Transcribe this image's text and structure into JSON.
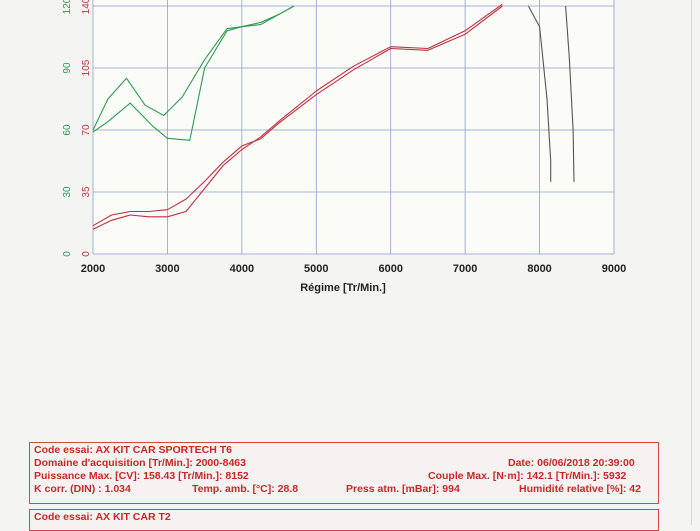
{
  "chart_data": {
    "type": "line",
    "xlabel": "Régime [Tr/Min.]",
    "x_ticks": [
      2000,
      3000,
      4000,
      5000,
      6000,
      7000,
      8000,
      9000
    ],
    "xlim": [
      2000,
      9000
    ],
    "y_left_power_ticks": [
      0,
      30,
      60,
      90,
      120
    ],
    "y_left_power_color": "#2e9a55",
    "y_right_torque_ticks": [
      0,
      35,
      70,
      105,
      140
    ],
    "y_right_torque_color": "#c23040",
    "ylim_power": [
      0,
      120
    ],
    "ylim_torque": [
      0,
      140
    ],
    "grid": true,
    "series": [
      {
        "color": "#c23040",
        "axis": "torque",
        "x": [
          2000,
          2250,
          2500,
          2750,
          3000,
          3250,
          3500,
          3750,
          4000,
          4250,
          4500,
          5000,
          5500,
          6000,
          6500,
          7000,
          7500
        ],
        "y": [
          16,
          22,
          24,
          24,
          25,
          31,
          41,
          52,
          61,
          65,
          74,
          90,
          104,
          116,
          115,
          124,
          140
        ]
      },
      {
        "color": "#c23040",
        "axis": "torque",
        "x": [
          2000,
          2250,
          2500,
          2750,
          3000,
          3250,
          3500,
          3750,
          4000,
          4250,
          4500,
          5000,
          5500,
          6000,
          6500,
          7000,
          7500
        ],
        "y": [
          14,
          19,
          22,
          21,
          21,
          24,
          37,
          50,
          59,
          66,
          75,
          92,
          106,
          117,
          116,
          126,
          141
        ]
      },
      {
        "color": "#2e9a55",
        "axis": "power",
        "x": [
          2000,
          2200,
          2450,
          2700,
          2950,
          3200,
          3500,
          3800,
          4000,
          4250,
          4500,
          4700
        ],
        "y": [
          60,
          75,
          85,
          72,
          67,
          76,
          94,
          109,
          110,
          112,
          116,
          120
        ]
      },
      {
        "color": "#2e9a55",
        "axis": "power",
        "x": [
          2000,
          2200,
          2500,
          2800,
          3000,
          3300,
          3500,
          3800,
          4000,
          4250,
          4500,
          4700
        ],
        "y": [
          59,
          64,
          73,
          62,
          56,
          55,
          90,
          108,
          110,
          111,
          116,
          120
        ]
      },
      {
        "color": "#555555",
        "axis": "power",
        "x": [
          7850,
          8000,
          8100,
          8150,
          8150
        ],
        "y": [
          120,
          110,
          75,
          45,
          35
        ]
      },
      {
        "color": "#555555",
        "axis": "power",
        "x": [
          8350,
          8400,
          8450,
          8460,
          8463
        ],
        "y": [
          120,
          95,
          60,
          40,
          35
        ]
      }
    ]
  },
  "info": {
    "code_label": "Code essai: AX KIT CAR SPORTECH T6",
    "domaine": "Domaine d'acquisition [Tr/Min.]: 2000-8463",
    "date": "Date: 06/06/2018   20:39:00",
    "puissance": "Puissance Max. [CV]: 158.43    [Tr/Min.]: 8152",
    "couple": "Couple Max. [N·m]: 142.1   [Tr/Min.]: 5932",
    "k_corr": "K corr. (DIN) : 1.034",
    "temp": "Temp. amb. [°C]: 28.8",
    "press": "Press atm. [mBar]: 994",
    "humidite": "Humidité relative [%]: 42"
  },
  "info2": {
    "code_label": "Code essai: AX KIT CAR T2"
  }
}
